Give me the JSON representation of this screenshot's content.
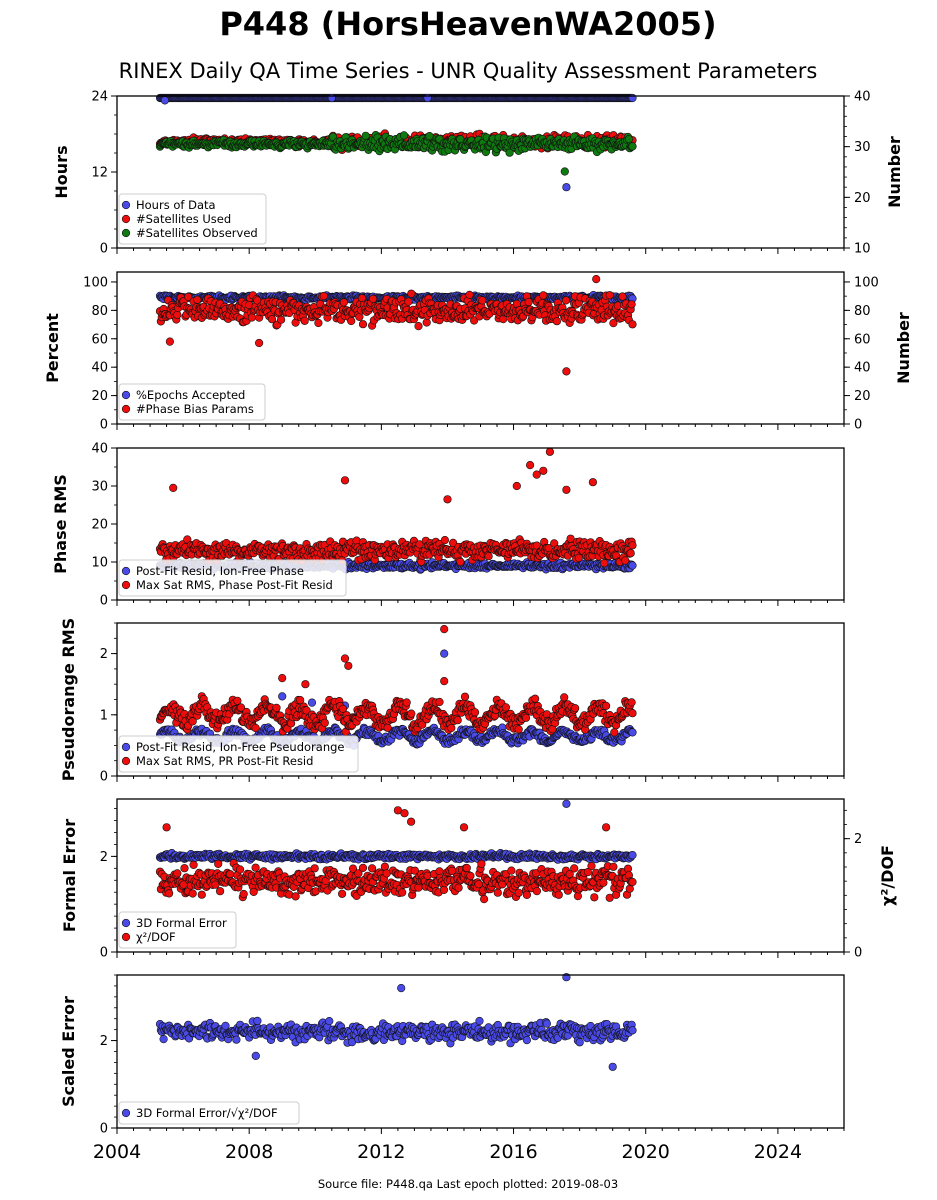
{
  "title": "P448 (HorsHeavenWA2005)",
  "subtitle": "RINEX Daily QA Time Series - UNR Quality Assessment Parameters",
  "footer": "Source file: P448.qa Last epoch plotted: 2019-08-03",
  "colors": {
    "blue": "#4a4ae8",
    "red": "#ee0d0d",
    "green": "#0f7a0f",
    "edge": "#111111"
  },
  "chart_data": [
    {
      "type": "scatter",
      "ylabel": "Hours",
      "ylabel_right": "Number",
      "ylim": [
        0,
        24
      ],
      "ylim_right": [
        10,
        40
      ],
      "yticks": [
        "0",
        "12",
        "24"
      ],
      "yticks_right": [
        "10",
        "20",
        "30",
        "40"
      ],
      "xlim": [
        2004,
        2026
      ],
      "x_range": [
        2005.3,
        2019.6
      ],
      "series": [
        {
          "name": "Hours of Data",
          "axis": "left",
          "color": "blue",
          "typical": 24,
          "outliers": [
            [
              2005.45,
              23.3
            ],
            [
              2010.5,
              23.7
            ],
            [
              2013.4,
              23.7
            ],
            [
              2017.6,
              9.6
            ]
          ]
        },
        {
          "name": "#Satellites Used",
          "axis": "right",
          "color": "red",
          "typical": 31,
          "outliers": [
            [
              2009.5,
              30.0
            ],
            [
              2017.65,
              32.0
            ]
          ]
        },
        {
          "name": "#Satellites Observed",
          "axis": "right",
          "color": "green",
          "typical": 30.5,
          "outliers": [
            [
              2017.55,
              25.1
            ]
          ]
        }
      ]
    },
    {
      "type": "scatter",
      "ylabel": "Percent",
      "ylabel_right": "Number",
      "ylim": [
        0,
        107
      ],
      "ylim_right": [
        0,
        107
      ],
      "yticks": [
        "0",
        "20",
        "40",
        "60",
        "80",
        "100"
      ],
      "yticks_right": [
        "0",
        "20",
        "40",
        "60",
        "80",
        "100"
      ],
      "xlim": [
        2004,
        2026
      ],
      "x_range": [
        2005.3,
        2019.6
      ],
      "series": [
        {
          "name": "%Epochs Accepted",
          "axis": "left",
          "color": "blue",
          "typical": 89
        },
        {
          "name": "#Phase Bias Params",
          "axis": "right",
          "color": "red",
          "typical": 80,
          "outliers": [
            [
              2017.6,
              37
            ],
            [
              2005.6,
              58
            ],
            [
              2008.3,
              57
            ],
            [
              2018.5,
              102
            ]
          ]
        }
      ]
    },
    {
      "type": "scatter",
      "ylabel": "Phase RMS",
      "ylim": [
        0,
        40
      ],
      "yticks": [
        "0",
        "10",
        "20",
        "30",
        "40"
      ],
      "xlim": [
        2004,
        2026
      ],
      "x_range": [
        2005.3,
        2019.6
      ],
      "series": [
        {
          "name": "Post-Fit Resid, Ion-Free Phase",
          "color": "blue",
          "typical": 9
        },
        {
          "name": "Max Sat RMS, Phase Post-Fit Resid",
          "color": "red",
          "typical": 13,
          "outliers": [
            [
              2017.1,
              39
            ],
            [
              2016.5,
              35.5
            ],
            [
              2016.9,
              34
            ],
            [
              2016.1,
              30
            ],
            [
              2018.4,
              31
            ],
            [
              2010.9,
              31.5
            ],
            [
              2005.7,
              29.5
            ],
            [
              2016.7,
              33
            ],
            [
              2017.6,
              29
            ],
            [
              2014.0,
              26.5
            ]
          ]
        }
      ]
    },
    {
      "type": "scatter",
      "ylabel": "Pseudorange RMS",
      "ylim": [
        0,
        2.5
      ],
      "yticks": [
        "0",
        "1",
        "2"
      ],
      "xlim": [
        2004,
        2026
      ],
      "x_range": [
        2005.3,
        2019.6
      ],
      "series": [
        {
          "name": "Post-Fit Resid, Ion-Free Pseudorange",
          "color": "blue",
          "typical": 0.65,
          "outliers": [
            [
              2013.9,
              2.0
            ],
            [
              2009.9,
              1.2
            ],
            [
              2010.9,
              1.15
            ],
            [
              2009.0,
              1.3
            ]
          ]
        },
        {
          "name": "Max Sat RMS, PR Post-Fit Resid",
          "color": "red",
          "typical": 1.0,
          "outliers": [
            [
              2013.9,
              2.4
            ],
            [
              2010.9,
              1.92
            ],
            [
              2013.9,
              1.55
            ],
            [
              2009.0,
              1.6
            ],
            [
              2009.7,
              1.5
            ],
            [
              2011.0,
              1.8
            ]
          ]
        }
      ]
    },
    {
      "type": "scatter",
      "ylabel": "Formal Error",
      "ylabel_right": "χ²/DOF",
      "ylim": [
        0,
        3.2
      ],
      "ylim_right": [
        0,
        2.7
      ],
      "yticks": [
        "0",
        "2"
      ],
      "yticks_right": [
        "0",
        "2"
      ],
      "xlim": [
        2004,
        2026
      ],
      "x_range": [
        2005.3,
        2019.6
      ],
      "series": [
        {
          "name": "3D Formal Error",
          "axis": "left",
          "color": "blue",
          "typical": 2.0,
          "outliers": [
            [
              2017.6,
              3.1
            ]
          ]
        },
        {
          "name": "χ²/DOF",
          "axis": "right",
          "color": "red",
          "typical": 1.25,
          "outliers": [
            [
              2012.5,
              2.5
            ],
            [
              2012.7,
              2.45
            ],
            [
              2012.9,
              2.3
            ],
            [
              2005.5,
              2.2
            ],
            [
              2014.5,
              2.2
            ],
            [
              2018.8,
              2.2
            ]
          ]
        }
      ]
    },
    {
      "type": "scatter",
      "ylabel": "Scaled Error",
      "ylim": [
        0,
        3.5
      ],
      "yticks": [
        "0",
        "2"
      ],
      "xlim": [
        2004,
        2026
      ],
      "x_range": [
        2005.3,
        2019.6
      ],
      "xticks": [
        "2004",
        "2008",
        "2012",
        "2016",
        "2020",
        "2024"
      ],
      "series": [
        {
          "name": "3D Formal Error/√χ²/DOF",
          "color": "blue",
          "typical": 2.2,
          "outliers": [
            [
              2017.6,
              3.45
            ],
            [
              2012.6,
              3.2
            ],
            [
              2019.0,
              1.4
            ],
            [
              2008.2,
              1.65
            ]
          ]
        }
      ]
    }
  ]
}
